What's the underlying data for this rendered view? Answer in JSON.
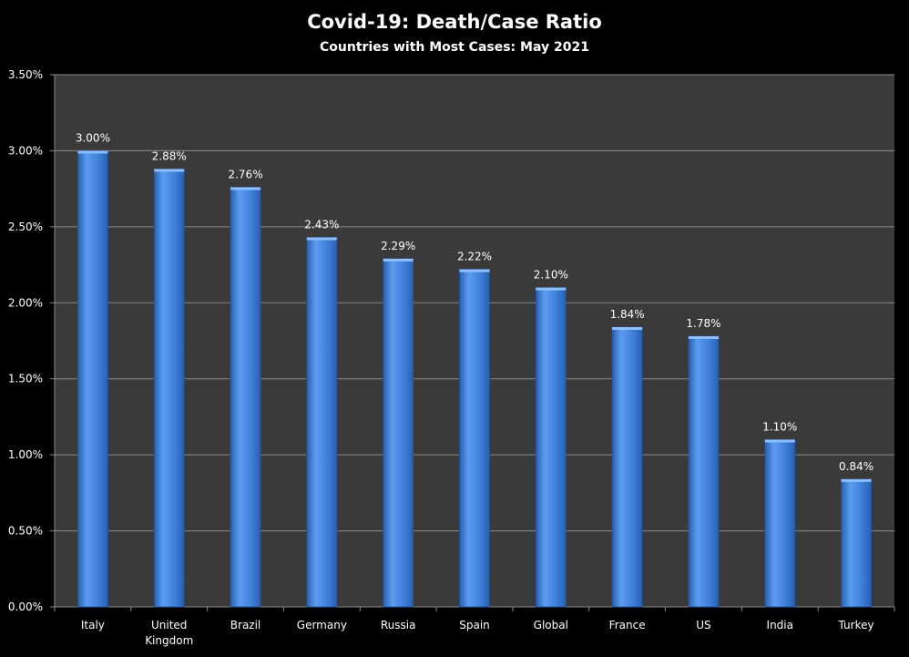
{
  "chart_data": {
    "type": "bar",
    "title": "Covid-19:  Death/Case Ratio",
    "subtitle": "Countries with Most Cases: May 2021",
    "categories": [
      [
        "Italy"
      ],
      [
        "United",
        "Kingdom"
      ],
      [
        "Brazil"
      ],
      [
        "Germany"
      ],
      [
        "Russia"
      ],
      [
        "Spain"
      ],
      [
        "Global"
      ],
      [
        "France"
      ],
      [
        "US"
      ],
      [
        "India"
      ],
      [
        "Turkey"
      ]
    ],
    "values": [
      3.0,
      2.88,
      2.76,
      2.43,
      2.29,
      2.22,
      2.1,
      1.84,
      1.78,
      1.1,
      0.84
    ],
    "data_labels": [
      "3.00%",
      "2.88%",
      "2.76%",
      "2.43%",
      "2.29%",
      "2.22%",
      "2.10%",
      "1.84%",
      "1.78%",
      "1.10%",
      "0.84%"
    ],
    "y_ticks": [
      "0.00%",
      "0.50%",
      "1.00%",
      "1.50%",
      "2.00%",
      "2.50%",
      "3.00%",
      "3.50%"
    ],
    "ylim": [
      0,
      3.5
    ],
    "xlabel": "",
    "ylabel": "",
    "grid": true,
    "legend": "none",
    "colors": {
      "background": "#000000",
      "plot_area": "#3a3a3a",
      "bar_light": "#5b9cf0",
      "bar_mid": "#3d7fd9",
      "bar_dark": "#2a5fb0",
      "grid": "#8a8a8a",
      "text": "#ffffff"
    }
  }
}
